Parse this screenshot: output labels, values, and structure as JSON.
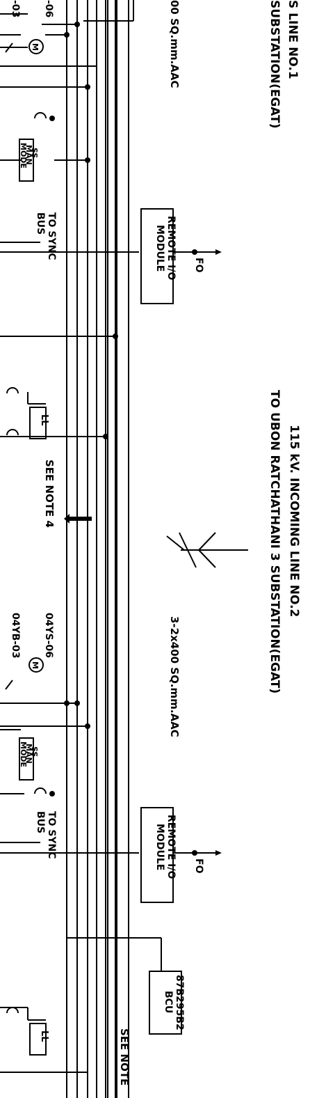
{
  "incoming_line_1": {
    "title_line1": "S LINE NO.1",
    "title_line2": "SUBSTATION(EGAT)",
    "conductor": "00 SQ.mm.AAC"
  },
  "incoming_line_2": {
    "title_line1": "115 kV. INCOMING LINE NO.2",
    "title_line2": "TO UBON RATCHATHANI 3 SUBSTATION(EGAT)",
    "conductor": "3-2x400 SQ.mm.AAC"
  },
  "bay_1": {
    "switch_tag_top": "-06",
    "switch_tag_bottom": "-03",
    "motor_label": "M",
    "ss_man_mode": [
      "SS",
      "MAN",
      "MODE"
    ],
    "sync_label": [
      "TO SYNC",
      "BUS"
    ],
    "remote_io": [
      "REMOTE I/O",
      "MODULE"
    ],
    "fo_label": "FO",
    "ll_label": "LL",
    "note": "SEE NOTE 4"
  },
  "bay_2": {
    "switch_tag_top": "04YS-06",
    "switch_tag_bottom": "04YB-03",
    "motor_label": "M",
    "ss_man_mode": [
      "SS",
      "MAN",
      "MODE"
    ],
    "sync_label": [
      "TO SYNC",
      "BUS"
    ],
    "remote_io": [
      "REMOTE I/O",
      "MODULE"
    ],
    "fo_label": "FO",
    "bcu": [
      "87B295B2",
      "BCU"
    ],
    "ll_label": "LL",
    "note": "SEE NOTE"
  }
}
